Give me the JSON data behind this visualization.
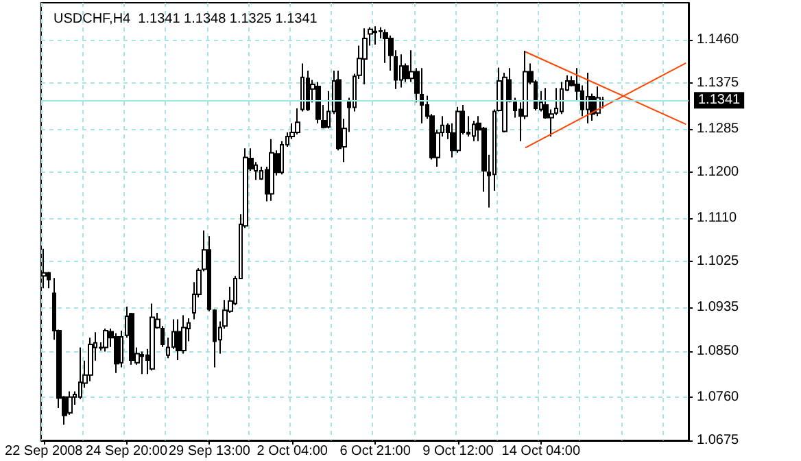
{
  "chart_data": {
    "type": "candlestick",
    "title": "USDCHF,H4  1.1341 1.1348 1.1325 1.1341",
    "categories": [
      "22 Sep 2008",
      null,
      null,
      null,
      null,
      null,
      null,
      null,
      null,
      null,
      null,
      null,
      null,
      null,
      null,
      null,
      "24 Sep 20:00",
      null,
      null,
      null,
      null,
      null,
      null,
      null,
      null,
      null,
      null,
      null,
      null,
      null,
      null,
      null,
      "29 Sep 13:00",
      null,
      null,
      null,
      null,
      null,
      null,
      null,
      null,
      null,
      null,
      null,
      null,
      null,
      null,
      null,
      "2 Oct 04:00",
      null,
      null,
      null,
      null,
      null,
      null,
      null,
      null,
      null,
      null,
      null,
      null,
      null,
      null,
      null,
      "6 Oct 21:00",
      null,
      null,
      null,
      null,
      null,
      null,
      null,
      null,
      null,
      null,
      null,
      null,
      null,
      null,
      null,
      "9 Oct 12:00",
      null,
      null,
      null,
      null,
      null,
      null,
      null,
      null,
      null,
      null,
      null,
      null,
      null,
      null,
      null,
      "14 Oct 04:00",
      null,
      null,
      null,
      null,
      null,
      null,
      null,
      null,
      null,
      null,
      null,
      null,
      null,
      null,
      null,
      null,
      null,
      null,
      null,
      null,
      null,
      null,
      null,
      null,
      null,
      null,
      null,
      null
    ],
    "ohlc": [
      [
        1.0997,
        1.105,
        1.0973,
        1.1003
      ],
      [
        1.1003,
        1.1005,
        1.0973,
        1.099
      ],
      [
        1.0963,
        1.0993,
        1.0872,
        1.089
      ],
      [
        1.089,
        1.0892,
        1.0738,
        1.0758
      ],
      [
        1.076,
        1.0762,
        1.0706,
        1.0724
      ],
      [
        1.0729,
        1.0771,
        1.0725,
        1.076
      ],
      [
        1.076,
        1.0771,
        1.0745,
        1.0765
      ],
      [
        1.076,
        1.0857,
        1.0756,
        1.0789
      ],
      [
        1.0787,
        1.0831,
        1.0778,
        1.0803
      ],
      [
        1.0803,
        1.0876,
        1.0791,
        1.0863
      ],
      [
        1.0857,
        1.0887,
        1.0831,
        1.0866
      ],
      [
        1.0856,
        1.0867,
        1.0851,
        1.0857
      ],
      [
        1.0857,
        1.0894,
        1.0849,
        1.089
      ],
      [
        1.0888,
        1.0894,
        1.0858,
        1.0876
      ],
      [
        1.0878,
        1.0885,
        1.0807,
        1.0825
      ],
      [
        1.0827,
        1.089,
        1.0818,
        1.0878
      ],
      [
        1.0881,
        1.0937,
        1.0876,
        1.0918
      ],
      [
        1.0923,
        1.0925,
        1.0823,
        1.0832
      ],
      [
        1.0827,
        1.0857,
        1.0823,
        1.0845
      ],
      [
        1.0843,
        1.0849,
        1.0805,
        1.084
      ],
      [
        1.0842,
        1.0854,
        1.0805,
        1.0832
      ],
      [
        1.0815,
        1.0943,
        1.0812,
        1.0916
      ],
      [
        1.0896,
        1.0925,
        1.0894,
        1.0912
      ],
      [
        1.0894,
        1.0899,
        1.0858,
        1.0863
      ],
      [
        1.0842,
        1.0876,
        1.0836,
        1.0857
      ],
      [
        1.0858,
        1.0912,
        1.0854,
        1.0888
      ],
      [
        1.0888,
        1.0912,
        1.0832,
        1.0851
      ],
      [
        1.0851,
        1.092,
        1.0845,
        1.0896
      ],
      [
        1.0894,
        1.0914,
        1.0869,
        1.0905
      ],
      [
        1.0925,
        1.0985,
        1.0912,
        1.0961
      ],
      [
        1.0961,
        1.1012,
        1.0955,
        1.1008
      ],
      [
        1.101,
        1.1086,
        1.1006,
        1.1048
      ],
      [
        1.1048,
        1.1075,
        1.0928,
        1.0932
      ],
      [
        1.093,
        1.0932,
        1.0818,
        1.0869
      ],
      [
        1.0872,
        1.0908,
        1.0845,
        1.0896
      ],
      [
        1.0899,
        1.095,
        1.0894,
        1.093
      ],
      [
        1.0928,
        1.0976,
        1.0925,
        1.0948
      ],
      [
        1.0943,
        1.0997,
        1.094,
        1.0992
      ],
      [
        1.0992,
        1.1118,
        1.0991,
        1.1098
      ],
      [
        1.1095,
        1.1247,
        1.1091,
        1.1229
      ],
      [
        1.1227,
        1.1247,
        1.1203,
        1.1207
      ],
      [
        1.1203,
        1.122,
        1.1185,
        1.1214
      ],
      [
        1.1187,
        1.1211,
        1.1185,
        1.1203
      ],
      [
        1.1205,
        1.1211,
        1.1143,
        1.1158
      ],
      [
        1.1158,
        1.1265,
        1.1144,
        1.1238
      ],
      [
        1.1236,
        1.1243,
        1.1194,
        1.12
      ],
      [
        1.12,
        1.1261,
        1.1196,
        1.1254
      ],
      [
        1.1254,
        1.1278,
        1.125,
        1.127
      ],
      [
        1.127,
        1.1296,
        1.1265,
        1.1278
      ],
      [
        1.1278,
        1.1325,
        1.1274,
        1.1298
      ],
      [
        1.1323,
        1.1413,
        1.1319,
        1.1386
      ],
      [
        1.1384,
        1.1399,
        1.132,
        1.1323
      ],
      [
        1.1363,
        1.1381,
        1.1337,
        1.1372
      ],
      [
        1.1368,
        1.1377,
        1.1296,
        1.1304
      ],
      [
        1.1301,
        1.1332,
        1.1286,
        1.1288
      ],
      [
        1.1289,
        1.1359,
        1.1286,
        1.1319
      ],
      [
        1.1319,
        1.1399,
        1.1314,
        1.1379
      ],
      [
        1.1381,
        1.1399,
        1.1243,
        1.1247
      ],
      [
        1.125,
        1.1305,
        1.122,
        1.1286
      ],
      [
        1.1339,
        1.1346,
        1.1279,
        1.1327
      ],
      [
        1.1327,
        1.1393,
        1.1319,
        1.1388
      ],
      [
        1.139,
        1.1448,
        1.1383,
        1.1423
      ],
      [
        1.1422,
        1.1482,
        1.1372,
        1.1462
      ],
      [
        1.1471,
        1.1484,
        1.1448,
        1.148
      ],
      [
        1.1474,
        1.1486,
        1.145,
        1.1476
      ],
      [
        1.1477,
        1.1484,
        1.1462,
        1.1476
      ],
      [
        1.1473,
        1.148,
        1.1414,
        1.1462
      ],
      [
        1.1462,
        1.1468,
        1.1399,
        1.1429
      ],
      [
        1.1426,
        1.1439,
        1.1363,
        1.1381
      ],
      [
        1.1381,
        1.1431,
        1.1366,
        1.1408
      ],
      [
        1.1408,
        1.1413,
        1.1377,
        1.1384
      ],
      [
        1.1384,
        1.1439,
        1.1377,
        1.1397
      ],
      [
        1.1397,
        1.1404,
        1.1337,
        1.1355
      ],
      [
        1.1352,
        1.1404,
        1.1296,
        1.1332
      ],
      [
        1.1332,
        1.135,
        1.1305,
        1.131
      ],
      [
        1.131,
        1.1314,
        1.1225,
        1.1229
      ],
      [
        1.1229,
        1.1283,
        1.1211,
        1.1277
      ],
      [
        1.1278,
        1.131,
        1.127,
        1.1292
      ],
      [
        1.1292,
        1.1296,
        1.1265,
        1.1278
      ],
      [
        1.1277,
        1.1296,
        1.1229,
        1.1243
      ],
      [
        1.1243,
        1.1328,
        1.1238,
        1.1319
      ],
      [
        1.1319,
        1.1332,
        1.1274,
        1.1278
      ],
      [
        1.1278,
        1.131,
        1.127,
        1.1275
      ],
      [
        1.1271,
        1.1301,
        1.1261,
        1.1294
      ],
      [
        1.1296,
        1.131,
        1.1261,
        1.1283
      ],
      [
        1.1286,
        1.1289,
        1.1162,
        1.1203
      ],
      [
        1.12,
        1.1234,
        1.1131,
        1.1194
      ],
      [
        1.1196,
        1.1323,
        1.1164,
        1.1319
      ],
      [
        1.1321,
        1.1405,
        1.1319,
        1.1379
      ],
      [
        1.128,
        1.1395,
        1.1278,
        1.1386
      ],
      [
        1.1381,
        1.1404,
        1.1337,
        1.1339
      ],
      [
        1.1337,
        1.1346,
        1.1307,
        1.1321
      ],
      [
        1.1323,
        1.1337,
        1.1261,
        1.131
      ],
      [
        1.131,
        1.1438,
        1.1304,
        1.1397
      ],
      [
        1.1397,
        1.1413,
        1.1372,
        1.1377
      ],
      [
        1.1377,
        1.1381,
        1.1321,
        1.1325
      ],
      [
        1.1323,
        1.1359,
        1.1319,
        1.1337
      ],
      [
        1.1332,
        1.1365,
        1.1305,
        1.1307
      ],
      [
        1.1307,
        1.1323,
        1.127,
        1.1314
      ],
      [
        1.1316,
        1.1365,
        1.1312,
        1.1325
      ],
      [
        1.1319,
        1.1377,
        1.1314,
        1.1363
      ],
      [
        1.1361,
        1.139,
        1.1359,
        1.1379
      ],
      [
        1.1379,
        1.1388,
        1.1368,
        1.137
      ],
      [
        1.1372,
        1.1404,
        1.1341,
        1.1359
      ],
      [
        1.1359,
        1.137,
        1.131,
        1.1323
      ],
      [
        1.1323,
        1.1395,
        1.1296,
        1.1348
      ],
      [
        1.1348,
        1.1354,
        1.1301,
        1.1314
      ],
      [
        1.1316,
        1.1368,
        1.131,
        1.1346
      ],
      [
        1.1341,
        1.1348,
        1.1325,
        1.1341
      ],
      null,
      null,
      null,
      null,
      null,
      null,
      null,
      null,
      null,
      null,
      null,
      null,
      null,
      null,
      null,
      null
    ],
    "color": "#000000",
    "series": [
      {
        "type": "line",
        "color": "#ff4500",
        "values": [
          null,
          null,
          null,
          null,
          null,
          null,
          null,
          null,
          null,
          null,
          null,
          null,
          null,
          null,
          null,
          null,
          null,
          null,
          null,
          null,
          null,
          null,
          null,
          null,
          null,
          null,
          null,
          null,
          null,
          null,
          null,
          null,
          null,
          null,
          null,
          null,
          null,
          null,
          null,
          null,
          null,
          null,
          null,
          null,
          null,
          null,
          null,
          null,
          null,
          null,
          null,
          null,
          null,
          null,
          null,
          null,
          null,
          null,
          null,
          null,
          null,
          null,
          null,
          null,
          null,
          null,
          null,
          null,
          null,
          null,
          null,
          null,
          null,
          null,
          null,
          null,
          null,
          null,
          null,
          null,
          null,
          null,
          null,
          null,
          null,
          null,
          null,
          null,
          null,
          null,
          null,
          null,
          null,
          1.1436,
          null,
          null,
          null,
          null,
          null,
          null,
          null,
          null,
          null,
          null,
          null,
          null,
          null,
          null,
          null,
          null,
          null,
          null,
          null,
          null,
          null,
          null,
          null,
          null,
          null,
          null,
          null,
          null,
          null,
          null,
          1.1294
        ]
      },
      {
        "type": "line",
        "color": "#ff4500",
        "values": [
          null,
          null,
          null,
          null,
          null,
          null,
          null,
          null,
          null,
          null,
          null,
          null,
          null,
          null,
          null,
          null,
          null,
          null,
          null,
          null,
          null,
          null,
          null,
          null,
          null,
          null,
          null,
          null,
          null,
          null,
          null,
          null,
          null,
          null,
          null,
          null,
          null,
          null,
          null,
          null,
          null,
          null,
          null,
          null,
          null,
          null,
          null,
          null,
          null,
          null,
          null,
          null,
          null,
          null,
          null,
          null,
          null,
          null,
          null,
          null,
          null,
          null,
          null,
          null,
          null,
          null,
          null,
          null,
          null,
          null,
          null,
          null,
          null,
          null,
          null,
          null,
          null,
          null,
          null,
          null,
          null,
          null,
          null,
          null,
          null,
          null,
          null,
          null,
          null,
          null,
          null,
          null,
          null,
          1.1248,
          null,
          null,
          null,
          null,
          null,
          null,
          null,
          null,
          null,
          null,
          null,
          null,
          null,
          null,
          null,
          null,
          null,
          null,
          null,
          null,
          null,
          null,
          null,
          null,
          null,
          null,
          null,
          null,
          null,
          null,
          1.1414
        ]
      }
    ],
    "ylim": [
      1.0675,
      1.1532
    ],
    "yticks": [
      1.0675,
      {
        "value": 1.076,
        "label": "1.0760"
      },
      {
        "value": 1.085,
        "label": "1.0850"
      },
      1.0935,
      1.1025,
      {
        "value": 1.111,
        "label": "1.1110"
      },
      {
        "value": 1.12,
        "label": "1.1200"
      },
      1.1285,
      1.1375,
      {
        "value": 1.146,
        "label": "1.1460"
      }
    ],
    "grid": true,
    "ref_lines": [
      {
        "axis": "y",
        "value": 1.1341,
        "label": "1.1341",
        "color": "#a0e8e8"
      }
    ]
  }
}
